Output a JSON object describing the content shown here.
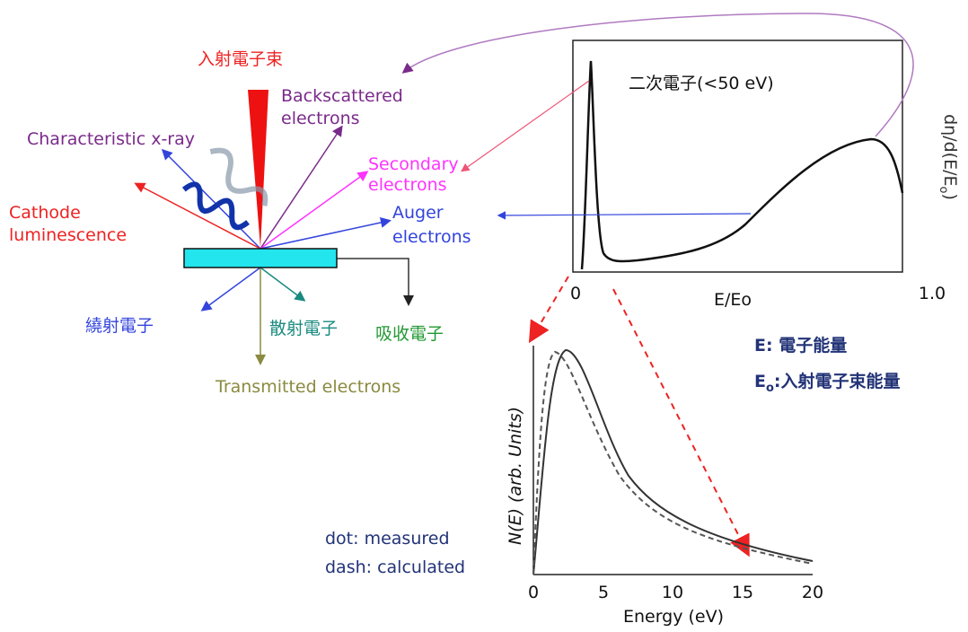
{
  "incident_beam": "入射電子束",
  "signals": {
    "backscattered": [
      "Backscattered",
      "electrons"
    ],
    "xray": "Characteristic x-ray",
    "cathode": [
      "Cathode",
      "luminescence"
    ],
    "secondary": [
      "Secondary",
      "electrons"
    ],
    "auger": [
      "Auger",
      "electrons"
    ],
    "diffracted": "繞射電子",
    "scattered": "散射電子",
    "absorbed": "吸收電子",
    "transmitted": "Transmitted electrons"
  },
  "spectrum": {
    "peak_label": "二次電子(<50 eV)",
    "y_label": {
      "main": "dη/d(E/E",
      "sub": "o",
      "end": ")"
    },
    "x_label": "E/Eo",
    "x_ticks": [
      "0",
      "1.0"
    ]
  },
  "legend": {
    "e": "E: 電子能量",
    "eo": {
      "main": "E",
      "sub": "o",
      "end": ":入射電子束能量"
    }
  },
  "detail": {
    "x_label": "Energy (eV)",
    "y_label": "N(E) (arb. Units)",
    "x_ticks": [
      "0",
      "5",
      "10",
      "15",
      "20"
    ],
    "notes": [
      "dot: measured",
      "dash: calculated"
    ]
  }
}
